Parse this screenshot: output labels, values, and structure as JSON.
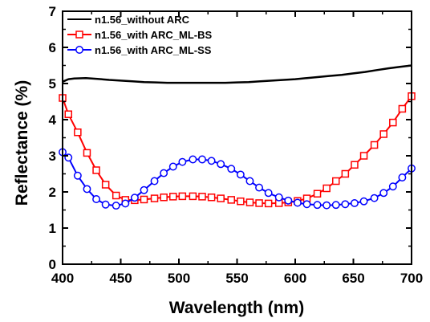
{
  "chart_data": {
    "type": "line",
    "title": "",
    "xlabel": "Wavelength (nm)",
    "ylabel": "Reflectance (%)",
    "xlim": [
      400,
      700
    ],
    "ylim": [
      0,
      7
    ],
    "xticks": [
      400,
      450,
      500,
      550,
      600,
      650,
      700
    ],
    "yticks": [
      0,
      1,
      2,
      3,
      4,
      5,
      6,
      7
    ],
    "grid": false,
    "legend_position": "top-left",
    "series": [
      {
        "name": "n1.56_without ARC",
        "color": "#000000",
        "marker": "none",
        "x": [
          400,
          405,
          410,
          420,
          430,
          440,
          450,
          460,
          470,
          480,
          490,
          500,
          510,
          520,
          530,
          540,
          550,
          560,
          570,
          580,
          590,
          600,
          610,
          620,
          630,
          640,
          650,
          660,
          670,
          680,
          690,
          700
        ],
        "y": [
          5.05,
          5.12,
          5.14,
          5.15,
          5.13,
          5.1,
          5.08,
          5.06,
          5.04,
          5.03,
          5.02,
          5.02,
          5.02,
          5.02,
          5.02,
          5.02,
          5.03,
          5.04,
          5.06,
          5.08,
          5.1,
          5.12,
          5.15,
          5.18,
          5.21,
          5.24,
          5.28,
          5.32,
          5.37,
          5.42,
          5.46,
          5.5
        ]
      },
      {
        "name": "n1.56_with ARC_ML-BS",
        "color": "#ff0000",
        "marker": "square",
        "x": [
          400,
          405,
          413,
          421,
          429,
          437,
          446,
          454,
          462,
          470,
          479,
          487,
          495,
          503,
          512,
          520,
          528,
          536,
          545,
          553,
          561,
          569,
          577,
          586,
          594,
          602,
          610,
          619,
          627,
          635,
          643,
          651,
          659,
          668,
          676,
          684,
          692,
          700
        ],
        "y": [
          4.6,
          4.15,
          3.65,
          3.08,
          2.6,
          2.2,
          1.9,
          1.78,
          1.77,
          1.79,
          1.82,
          1.85,
          1.87,
          1.88,
          1.88,
          1.87,
          1.85,
          1.82,
          1.78,
          1.74,
          1.71,
          1.69,
          1.68,
          1.69,
          1.71,
          1.75,
          1.82,
          1.95,
          2.1,
          2.3,
          2.5,
          2.75,
          3.0,
          3.3,
          3.6,
          3.92,
          4.3,
          4.65
        ]
      },
      {
        "name": "n1.56_with ARC_ML-SS",
        "color": "#0000ff",
        "marker": "circle",
        "x": [
          400,
          405,
          413,
          421,
          429,
          437,
          446,
          454,
          462,
          470,
          479,
          487,
          495,
          503,
          512,
          520,
          528,
          536,
          545,
          553,
          561,
          569,
          577,
          586,
          594,
          602,
          610,
          619,
          627,
          635,
          643,
          651,
          659,
          668,
          676,
          684,
          692,
          700
        ],
        "y": [
          3.1,
          2.95,
          2.45,
          2.08,
          1.8,
          1.65,
          1.62,
          1.68,
          1.84,
          2.05,
          2.3,
          2.52,
          2.7,
          2.83,
          2.9,
          2.9,
          2.86,
          2.77,
          2.64,
          2.48,
          2.3,
          2.12,
          1.97,
          1.85,
          1.76,
          1.7,
          1.66,
          1.64,
          1.63,
          1.64,
          1.66,
          1.69,
          1.74,
          1.83,
          1.97,
          2.15,
          2.4,
          2.65
        ]
      }
    ]
  }
}
